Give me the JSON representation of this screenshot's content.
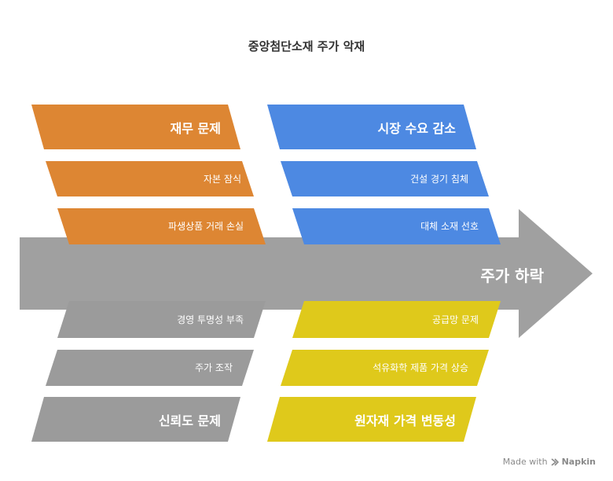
{
  "title": "중앙첨단소재 주가 악재",
  "outcome": "주가 하락",
  "colors": {
    "arrow": "#a0a0a0",
    "financial": "#dd8633",
    "demand": "#4d89e2",
    "trust": "#9b9b9b",
    "material": "#dfc91b",
    "text": "#ffffff"
  },
  "categories": {
    "financial": {
      "label": "재무 문제",
      "causes": [
        "자본 잠식",
        "파생상품 거래 손실"
      ]
    },
    "demand": {
      "label": "시장 수요 감소",
      "causes": [
        "건설 경기 침체",
        "대체 소재 선호"
      ]
    },
    "trust": {
      "label": "신뢰도 문제",
      "causes": [
        "경영 투명성 부족",
        "주가 조작"
      ]
    },
    "material": {
      "label": "원자재 가격 변동성",
      "causes": [
        "공급망 문제",
        "석유화학 제품 가격 상승"
      ]
    }
  },
  "footer": {
    "made_with": "Made with",
    "brand": "Napkin"
  }
}
